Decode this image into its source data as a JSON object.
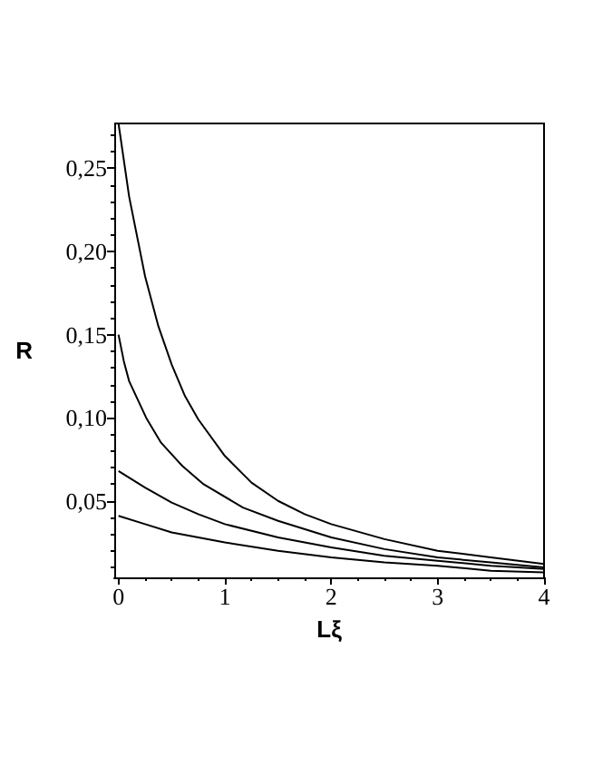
{
  "chart_data": {
    "type": "line",
    "xlabel": "Lξ",
    "ylabel": "R",
    "xlim": [
      -0.04,
      4
    ],
    "ylim": [
      0.004,
      0.277
    ],
    "xticks": [
      0,
      1,
      2,
      3,
      4
    ],
    "yticks": [
      {
        "value": 0.05,
        "label": "0,05"
      },
      {
        "value": 0.1,
        "label": "0,10"
      },
      {
        "value": 0.15,
        "label": "0,15"
      },
      {
        "value": 0.2,
        "label": "0,20"
      },
      {
        "value": 0.25,
        "label": "0,25"
      }
    ],
    "grid": false,
    "marker": "none",
    "line_style": "solid",
    "series": [
      {
        "color": "#000000",
        "x": [
          0,
          0.1,
          0.25,
          0.375,
          0.5,
          0.625,
          0.75,
          1,
          1.25,
          1.5,
          1.75,
          2,
          2.5,
          3,
          3.5,
          4
        ],
        "values": [
          0.277,
          0.233,
          0.185,
          0.155,
          0.132,
          0.113,
          0.099,
          0.077,
          0.061,
          0.05,
          0.042,
          0.036,
          0.027,
          0.02,
          0.016,
          0.012
        ]
      },
      {
        "color": "#000000",
        "x": [
          0,
          0.05,
          0.1,
          0.26,
          0.4,
          0.6,
          0.8,
          1.17,
          1.5,
          2,
          2.5,
          3,
          3.5,
          4
        ],
        "values": [
          0.15,
          0.134,
          0.122,
          0.1,
          0.085,
          0.071,
          0.06,
          0.046,
          0.038,
          0.028,
          0.021,
          0.016,
          0.013,
          0.01
        ]
      },
      {
        "color": "#000000",
        "x": [
          0,
          0.25,
          0.5,
          0.75,
          1,
          1.5,
          2,
          2.5,
          3,
          3.5,
          4
        ],
        "values": [
          0.068,
          0.058,
          0.049,
          0.042,
          0.036,
          0.028,
          0.022,
          0.017,
          0.014,
          0.011,
          0.009
        ]
      },
      {
        "color": "#000000",
        "x": [
          0,
          0.25,
          0.5,
          0.75,
          1,
          1.5,
          2,
          2.5,
          3,
          3.5,
          4
        ],
        "values": [
          0.041,
          0.036,
          0.031,
          0.028,
          0.025,
          0.02,
          0.016,
          0.013,
          0.011,
          0.008,
          0.007
        ]
      }
    ]
  }
}
